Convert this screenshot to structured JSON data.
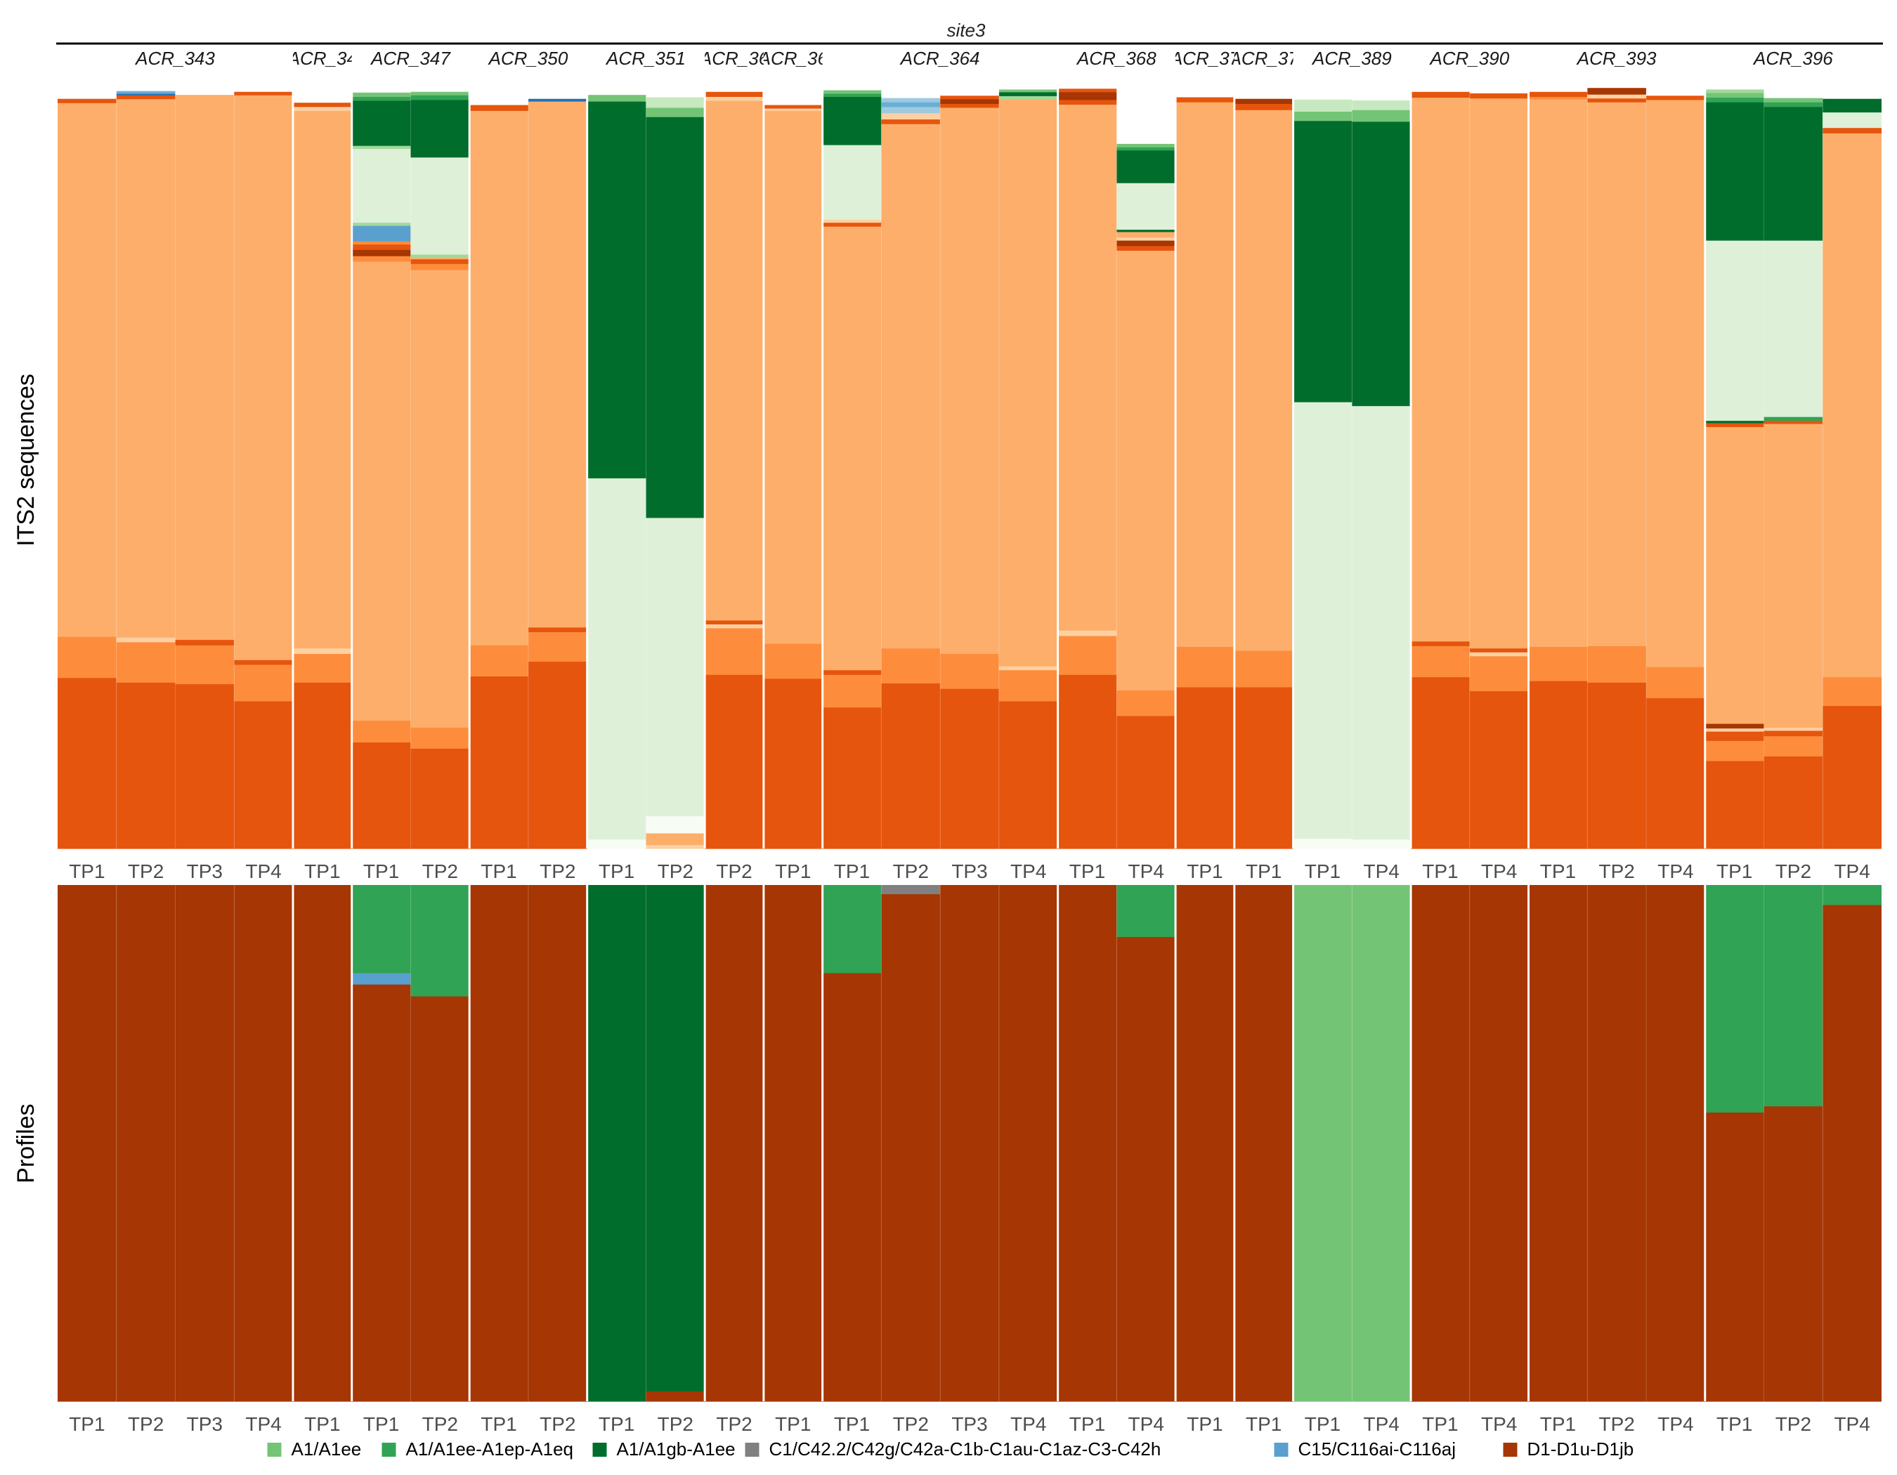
{
  "chart_data": {
    "type": "bar",
    "stacked": true,
    "normalized": true,
    "facet_title": "site3",
    "panels": [
      {
        "key": "its2",
        "ylabel": "ITS2 sequences"
      },
      {
        "key": "profiles",
        "ylabel": "Profiles"
      }
    ],
    "groups": [
      {
        "label": "ACR_343",
        "samples": [
          "TP1",
          "TP2",
          "TP3",
          "TP4"
        ]
      },
      {
        "label": "ACR_34",
        "samples": [
          "TP1"
        ]
      },
      {
        "label": "ACR_347",
        "samples": [
          "TP1",
          "TP2"
        ]
      },
      {
        "label": "ACR_350",
        "samples": [
          "TP1",
          "TP2"
        ]
      },
      {
        "label": "ACR_351",
        "samples": [
          "TP1",
          "TP2"
        ]
      },
      {
        "label": "ACR_36",
        "samples": [
          "TP2"
        ]
      },
      {
        "label": "ACR_36",
        "samples": [
          "TP1"
        ]
      },
      {
        "label": "ACR_364",
        "samples": [
          "TP1",
          "TP2",
          "TP3",
          "TP4"
        ]
      },
      {
        "label": "ACR_368",
        "samples": [
          "TP1",
          "TP4"
        ]
      },
      {
        "label": "ACR_37",
        "samples": [
          "TP1"
        ]
      },
      {
        "label": "ACR_37",
        "samples": [
          "TP1"
        ]
      },
      {
        "label": "ACR_389",
        "samples": [
          "TP1",
          "TP4"
        ]
      },
      {
        "label": "ACR_390",
        "samples": [
          "TP1",
          "TP4"
        ]
      },
      {
        "label": "ACR_393",
        "samples": [
          "TP1",
          "TP2",
          "TP4"
        ]
      },
      {
        "label": "ACR_396",
        "samples": [
          "TP1",
          "TP2",
          "TP4"
        ]
      }
    ],
    "legend": [
      {
        "label": "A1/A1ee",
        "color": "#74c476"
      },
      {
        "label": "A1/A1ee-A1ep-A1eq",
        "color": "#31a354"
      },
      {
        "label": "A1/A1gb-A1ee",
        "color": "#006d2c"
      },
      {
        "label": "C1/C42.2/C42g/C42a-C1b-C1au-C1az-C3-C42h",
        "color": "#808080"
      },
      {
        "label": "C15/C116ai-C116aj",
        "color": "#5aa0cf"
      },
      {
        "label": "D1-D1u-D1jb",
        "color": "#a63603"
      }
    ],
    "legend_position": "bottom",
    "its2_bars": [
      [
        [
          "#e6550d",
          0.22
        ],
        [
          "#fd8d3c",
          0.053
        ],
        [
          "#fdae6b",
          0.687
        ],
        [
          "#e6550d",
          0.005
        ]
      ],
      [
        [
          "#e6550d",
          0.214
        ],
        [
          "#fd8d3c",
          0.052
        ],
        [
          "#fdd0a2",
          0.006
        ],
        [
          "#fdae6b",
          0.693
        ],
        [
          "#e6550d",
          0.005
        ],
        [
          "#2171b5",
          0.002
        ],
        [
          "#6baed6",
          0.003
        ]
      ],
      [
        [
          "#e6550d",
          0.212
        ],
        [
          "#fd8d3c",
          0.05
        ],
        [
          "#e6550d",
          0.007
        ],
        [
          "#fdae6b",
          0.701
        ]
      ],
      [
        [
          "#e6550d",
          0.19
        ],
        [
          "#fd8d3c",
          0.047
        ],
        [
          "#e6550d",
          0.006
        ],
        [
          "#fdae6b",
          0.727
        ],
        [
          "#e6550d",
          0.004
        ]
      ],
      [
        [
          "#e6550d",
          0.214
        ],
        [
          "#fd8d3c",
          0.037
        ],
        [
          "#fdd0a2",
          0.007
        ],
        [
          "#fdae6b",
          0.692
        ],
        [
          "#fdd0a2",
          0.005
        ],
        [
          "#e6550d",
          0.005
        ]
      ],
      [
        [
          "#e6550d",
          0.137
        ],
        [
          "#fd8d3c",
          0.028
        ],
        [
          "#fdae6b",
          0.591
        ],
        [
          "#fd8d3c",
          0.007
        ],
        [
          "#a63603",
          0.008
        ],
        [
          "#e6550d",
          0.007
        ],
        [
          "#fd8d3c",
          0.004
        ],
        [
          "#5aa0cf",
          0.02
        ],
        [
          "#a1d99b",
          0.004
        ],
        [
          "#dff0d8",
          0.095
        ],
        [
          "#a1d99b",
          0.004
        ],
        [
          "#006d2c",
          0.058
        ],
        [
          "#31a354",
          0.005
        ],
        [
          "#74c476",
          0.005
        ]
      ],
      [
        [
          "#e6550d",
          0.129
        ],
        [
          "#fd8d3c",
          0.027
        ],
        [
          "#fdae6b",
          0.589
        ],
        [
          "#fd8d3c",
          0.008
        ],
        [
          "#e6550d",
          0.006
        ],
        [
          "#fdae6b",
          0.002
        ],
        [
          "#a1d99b",
          0.004
        ],
        [
          "#dff0d8",
          0.125
        ],
        [
          "#006d2c",
          0.074
        ],
        [
          "#31a354",
          0.006
        ],
        [
          "#74c476",
          0.004
        ]
      ],
      [
        [
          "#e6550d",
          0.222
        ],
        [
          "#fd8d3c",
          0.04
        ],
        [
          "#fdae6b",
          0.688
        ],
        [
          "#e6550d",
          0.007
        ]
      ],
      [
        [
          "#e6550d",
          0.241
        ],
        [
          "#fd8d3c",
          0.038
        ],
        [
          "#e6550d",
          0.006
        ],
        [
          "#fdae6b",
          0.677
        ],
        [
          "#2171b5",
          0.003
        ]
      ],
      [
        [
          "#f7fcf5",
          0.012
        ],
        [
          "#dff0d8",
          0.015
        ],
        [
          "#dff0d8",
          0.45
        ],
        [
          "#006d2c",
          0.485
        ],
        [
          "#74c476",
          0.008
        ]
      ],
      [
        [
          "#fdd0a2",
          0.005
        ],
        [
          "#fdae6b",
          0.015
        ],
        [
          "#f7fcf5",
          0.022
        ],
        [
          "#dff0d8",
          0.384
        ],
        [
          "#006d2c",
          0.516
        ],
        [
          "#74c476",
          0.012
        ],
        [
          "#c7e9c0",
          0.013
        ]
      ],
      [
        [
          "#e6550d",
          0.224
        ],
        [
          "#fd8d3c",
          0.06
        ],
        [
          "#fdd0a2",
          0.005
        ],
        [
          "#e6550d",
          0.005
        ],
        [
          "#fdae6b",
          0.669
        ],
        [
          "#fdd0a2",
          0.005
        ],
        [
          "#e6550d",
          0.006
        ]
      ],
      [
        [
          "#e6550d",
          0.219
        ],
        [
          "#fd8d3c",
          0.045
        ],
        [
          "#fdae6b",
          0.686
        ],
        [
          "#fdd0a2",
          0.003
        ],
        [
          "#e6550d",
          0.004
        ]
      ],
      [
        [
          "#e6550d",
          0.182
        ],
        [
          "#fd8d3c",
          0.042
        ],
        [
          "#e6550d",
          0.006
        ],
        [
          "#fdae6b",
          0.571
        ],
        [
          "#e6550d",
          0.005
        ],
        [
          "#fdd0a2",
          0.004
        ],
        [
          "#dff0d8",
          0.096
        ],
        [
          "#006d2c",
          0.062
        ],
        [
          "#31a354",
          0.004
        ],
        [
          "#74c476",
          0.004
        ]
      ],
      [
        [
          "#e6550d",
          0.213
        ],
        [
          "#fd8d3c",
          0.045
        ],
        [
          "#fdae6b",
          0.675
        ],
        [
          "#e6550d",
          0.006
        ],
        [
          "#fdd0a2",
          0.008
        ],
        [
          "#9ecae1",
          0.008
        ],
        [
          "#6baed6",
          0.006
        ],
        [
          "#9ecae1",
          0.005
        ]
      ],
      [
        [
          "#e6550d",
          0.206
        ],
        [
          "#fd8d3c",
          0.045
        ],
        [
          "#fdae6b",
          0.703
        ],
        [
          "#e6550d",
          0.005
        ],
        [
          "#a63603",
          0.006
        ],
        [
          "#e6550d",
          0.004
        ]
      ],
      [
        [
          "#e6550d",
          0.19
        ],
        [
          "#fd8d3c",
          0.04
        ],
        [
          "#fdd0a2",
          0.005
        ],
        [
          "#fdae6b",
          0.73
        ],
        [
          "#a1d99b",
          0.004
        ],
        [
          "#006d2c",
          0.005
        ],
        [
          "#74c476",
          0.003
        ]
      ],
      [
        [
          "#e6550d",
          0.224
        ],
        [
          "#fd8d3c",
          0.05
        ],
        [
          "#fdd0a2",
          0.007
        ],
        [
          "#fdae6b",
          0.677
        ],
        [
          "#e6550d",
          0.006
        ],
        [
          "#a63603",
          0.01
        ],
        [
          "#e6550d",
          0.004
        ]
      ],
      [
        [
          "#e6550d",
          0.171
        ],
        [
          "#fd8d3c",
          0.033
        ],
        [
          "#fdae6b",
          0.566
        ],
        [
          "#e6550d",
          0.006
        ],
        [
          "#a63603",
          0.007
        ],
        [
          "#fdd0a2",
          0.004
        ],
        [
          "#fdae6b",
          0.007
        ],
        [
          "#006d2c",
          0.003
        ],
        [
          "#dff0d8",
          0.06
        ],
        [
          "#006d2c",
          0.042
        ],
        [
          "#31a354",
          0.004
        ],
        [
          "#74c476",
          0.004
        ]
      ],
      [
        [
          "#e6550d",
          0.208
        ],
        [
          "#fd8d3c",
          0.052
        ],
        [
          "#fdae6b",
          0.701
        ],
        [
          "#e6550d",
          0.006
        ]
      ],
      [
        [
          "#e6550d",
          0.208
        ],
        [
          "#fd8d3c",
          0.047
        ],
        [
          "#fdae6b",
          0.696
        ],
        [
          "#e6550d",
          0.008
        ],
        [
          "#a63603",
          0.006
        ]
      ],
      [
        [
          "#f7fcf5",
          0.013
        ],
        [
          "#dff0d8",
          0.562
        ],
        [
          "#006d2c",
          0.362
        ],
        [
          "#74c476",
          0.012
        ],
        [
          "#c7e9c0",
          0.015
        ]
      ],
      [
        [
          "#f7fcf5",
          0.012
        ],
        [
          "#dff0d8",
          0.558
        ],
        [
          "#006d2c",
          0.366
        ],
        [
          "#74c476",
          0.015
        ],
        [
          "#c7e9c0",
          0.012
        ]
      ],
      [
        [
          "#e6550d",
          0.221
        ],
        [
          "#fd8d3c",
          0.04
        ],
        [
          "#e6550d",
          0.006
        ],
        [
          "#fdae6b",
          0.7
        ],
        [
          "#e6550d",
          0.007
        ]
      ],
      [
        [
          "#e6550d",
          0.203
        ],
        [
          "#fd8d3c",
          0.045
        ],
        [
          "#fdd0a2",
          0.005
        ],
        [
          "#e6550d",
          0.005
        ],
        [
          "#fdae6b",
          0.708
        ],
        [
          "#e6550d",
          0.006
        ]
      ],
      [
        [
          "#e6550d",
          0.216
        ],
        [
          "#fd8d3c",
          0.044
        ],
        [
          "#fdae6b",
          0.705
        ],
        [
          "#fd8d3c",
          0.003
        ],
        [
          "#e6550d",
          0.006
        ]
      ],
      [
        [
          "#e6550d",
          0.214
        ],
        [
          "#fd8d3c",
          0.047
        ],
        [
          "#fdae6b",
          0.7
        ],
        [
          "#e6550d",
          0.005
        ],
        [
          "#fdd0a2",
          0.005
        ],
        [
          "#a63603",
          0.008
        ]
      ],
      [
        [
          "#e6550d",
          0.194
        ],
        [
          "#fd8d3c",
          0.04
        ],
        [
          "#fdae6b",
          0.73
        ],
        [
          "#e6550d",
          0.005
        ]
      ],
      [
        [
          "#e6550d",
          0.113
        ],
        [
          "#fd8d3c",
          0.026
        ],
        [
          "#e6550d",
          0.012
        ],
        [
          "#fdd0a2",
          0.004
        ],
        [
          "#a63603",
          0.006
        ],
        [
          "#fdae6b",
          0.382
        ],
        [
          "#e6550d",
          0.005
        ],
        [
          "#006d2c",
          0.003
        ],
        [
          "#dff0d8",
          0.232
        ],
        [
          "#006d2c",
          0.178
        ],
        [
          "#31a354",
          0.006
        ],
        [
          "#74c476",
          0.006
        ],
        [
          "#a1d99b",
          0.004
        ]
      ],
      [
        [
          "#e6550d",
          0.119
        ],
        [
          "#fd8d3c",
          0.026
        ],
        [
          "#e6550d",
          0.007
        ],
        [
          "#fdd0a2",
          0.004
        ],
        [
          "#fdae6b",
          0.391
        ],
        [
          "#e6550d",
          0.004
        ],
        [
          "#31a354",
          0.005
        ],
        [
          "#dff0d8",
          0.227
        ],
        [
          "#006d2c",
          0.172
        ],
        [
          "#31a354",
          0.006
        ],
        [
          "#74c476",
          0.005
        ]
      ],
      [
        [
          "#e6550d",
          0.184
        ],
        [
          "#fd8d3c",
          0.037
        ],
        [
          "#fdae6b",
          0.7
        ],
        [
          "#e6550d",
          0.007
        ],
        [
          "#dff0d8",
          0.02
        ],
        [
          "#006d2c",
          0.017
        ]
      ]
    ],
    "profile_bars": [
      [
        [
          "#a63603",
          1.0
        ]
      ],
      [
        [
          "#a63603",
          1.0
        ]
      ],
      [
        [
          "#a63603",
          1.0
        ]
      ],
      [
        [
          "#a63603",
          1.0
        ]
      ],
      [
        [
          "#a63603",
          1.0
        ]
      ],
      [
        [
          "#a63603",
          0.808
        ],
        [
          "#5aa0cf",
          0.022
        ],
        [
          "#31a354",
          0.17
        ]
      ],
      [
        [
          "#a63603",
          0.785
        ],
        [
          "#31a354",
          0.215
        ]
      ],
      [
        [
          "#a63603",
          1.0
        ]
      ],
      [
        [
          "#a63603",
          1.0
        ]
      ],
      [
        [
          "#006d2c",
          1.0
        ]
      ],
      [
        [
          "#a63603",
          0.02
        ],
        [
          "#006d2c",
          0.98
        ]
      ],
      [
        [
          "#a63603",
          1.0
        ]
      ],
      [
        [
          "#a63603",
          1.0
        ]
      ],
      [
        [
          "#a63603",
          0.83
        ],
        [
          "#31a354",
          0.17
        ]
      ],
      [
        [
          "#a63603",
          0.983
        ],
        [
          "#808080",
          0.017
        ]
      ],
      [
        [
          "#a63603",
          1.0
        ]
      ],
      [
        [
          "#a63603",
          1.0
        ]
      ],
      [
        [
          "#a63603",
          1.0
        ]
      ],
      [
        [
          "#a63603",
          0.9
        ],
        [
          "#31a354",
          0.1
        ]
      ],
      [
        [
          "#a63603",
          1.0
        ]
      ],
      [
        [
          "#a63603",
          1.0
        ]
      ],
      [
        [
          "#74c476",
          1.0
        ]
      ],
      [
        [
          "#74c476",
          1.0
        ]
      ],
      [
        [
          "#a63603",
          1.0
        ]
      ],
      [
        [
          "#a63603",
          1.0
        ]
      ],
      [
        [
          "#a63603",
          1.0
        ]
      ],
      [
        [
          "#a63603",
          1.0
        ]
      ],
      [
        [
          "#a63603",
          1.0
        ]
      ],
      [
        [
          "#a63603",
          0.56
        ],
        [
          "#31a354",
          0.44
        ]
      ],
      [
        [
          "#a63603",
          0.572
        ],
        [
          "#31a354",
          0.428
        ]
      ],
      [
        [
          "#a63603",
          0.962
        ],
        [
          "#31a354",
          0.038
        ]
      ]
    ]
  }
}
